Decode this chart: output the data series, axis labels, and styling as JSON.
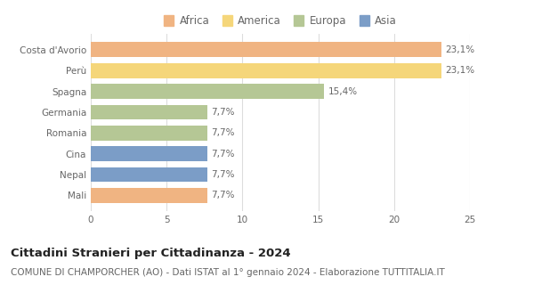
{
  "categories": [
    "Costa d'Avorio",
    "Perù",
    "Spagna",
    "Germania",
    "Romania",
    "Cina",
    "Nepal",
    "Mali"
  ],
  "values": [
    23.1,
    23.1,
    15.4,
    7.7,
    7.7,
    7.7,
    7.7,
    7.7
  ],
  "labels": [
    "23,1%",
    "23,1%",
    "15,4%",
    "7,7%",
    "7,7%",
    "7,7%",
    "7,7%",
    "7,7%"
  ],
  "bar_colors": [
    "#f0b482",
    "#f5d67a",
    "#b5c795",
    "#b5c795",
    "#b5c795",
    "#7b9dc7",
    "#7b9dc7",
    "#f0b482"
  ],
  "legend": [
    {
      "label": "Africa",
      "color": "#f0b482"
    },
    {
      "label": "America",
      "color": "#f5d67a"
    },
    {
      "label": "Europa",
      "color": "#b5c795"
    },
    {
      "label": "Asia",
      "color": "#7b9dc7"
    }
  ],
  "xlim": [
    0,
    25
  ],
  "xticks": [
    0,
    5,
    10,
    15,
    20,
    25
  ],
  "title": "Cittadini Stranieri per Cittadinanza - 2024",
  "subtitle": "COMUNE DI CHAMPORCHER (AO) - Dati ISTAT al 1° gennaio 2024 - Elaborazione TUTTITALIA.IT",
  "title_fontsize": 9.5,
  "subtitle_fontsize": 7.5,
  "label_fontsize": 7.5,
  "tick_fontsize": 7.5,
  "legend_fontsize": 8.5,
  "background_color": "#ffffff",
  "grid_color": "#dddddd"
}
